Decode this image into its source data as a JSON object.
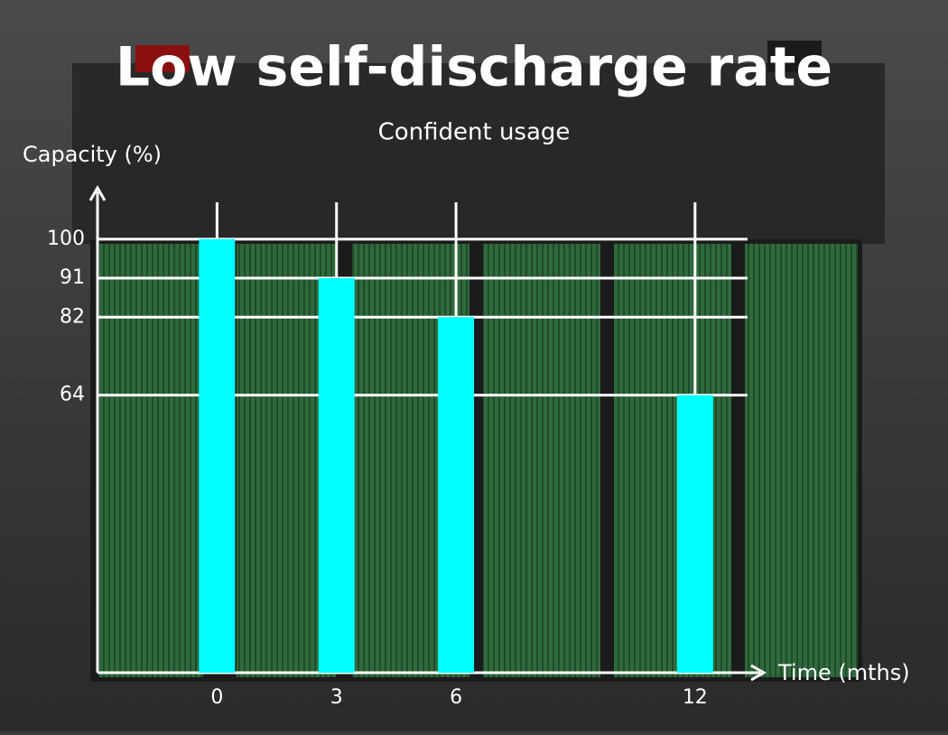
{
  "chart_data": {
    "type": "bar",
    "title": "Low self-discharge rate",
    "subtitle": "Confident usage",
    "y_label": "Capacity (%)",
    "x_label": "Time (mths)",
    "x": [
      0,
      3,
      6,
      12
    ],
    "values": [
      100,
      91,
      82,
      64
    ],
    "color": "#00ffff",
    "xlim": [
      -3,
      13.5
    ],
    "xticks": [
      0,
      3,
      6,
      12
    ],
    "ylim": [
      0,
      111
    ],
    "yticks": [
      100,
      91,
      82,
      64
    ],
    "grid": true
  }
}
